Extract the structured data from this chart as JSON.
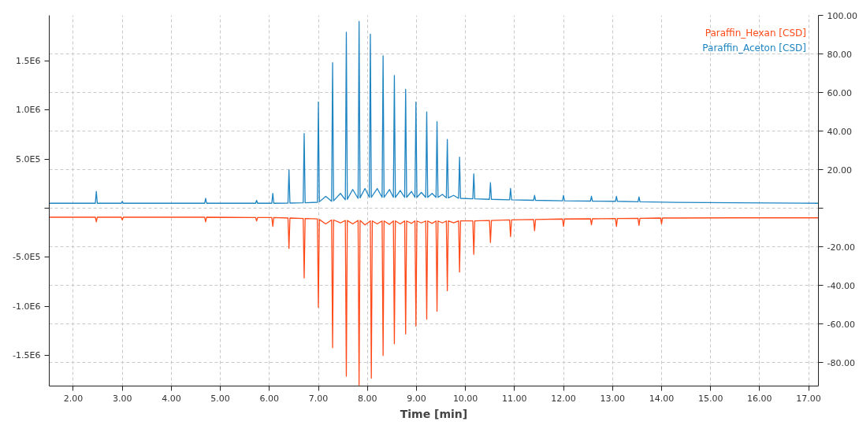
{
  "chart_data": {
    "type": "line",
    "xlabel": "Time [min]",
    "xlim": [
      1.51,
      17.2
    ],
    "xticks": [
      {
        "value": 2,
        "label": "2.00"
      },
      {
        "value": 3,
        "label": "3.00"
      },
      {
        "value": 4,
        "label": "4.00"
      },
      {
        "value": 5,
        "label": "5.00"
      },
      {
        "value": 6,
        "label": "6.00"
      },
      {
        "value": 7,
        "label": "7.00"
      },
      {
        "value": 8,
        "label": "8.00"
      },
      {
        "value": 9,
        "label": "9.00"
      },
      {
        "value": 10,
        "label": "10.00"
      },
      {
        "value": 11,
        "label": "11.00"
      },
      {
        "value": 12,
        "label": "12.00"
      },
      {
        "value": 13,
        "label": "13.00"
      },
      {
        "value": 14,
        "label": "14.00"
      },
      {
        "value": 15,
        "label": "15.00"
      },
      {
        "value": 16,
        "label": "16.00"
      },
      {
        "value": 17,
        "label": "17.00"
      }
    ],
    "ylim": [
      -1810000,
      1962000
    ],
    "yticks": [
      {
        "value": 1500000,
        "label": "1.5E6"
      },
      {
        "value": 1000000,
        "label": "1.0E6"
      },
      {
        "value": 500000,
        "label": "5.0E5"
      },
      {
        "value": 0,
        "label": null
      },
      {
        "value": -500000,
        "label": "-5.0E5"
      },
      {
        "value": -1000000,
        "label": "-1.0E6"
      },
      {
        "value": -1500000,
        "label": "-1.5E6"
      }
    ],
    "y2lim": [
      -92.2,
      100
    ],
    "y2ticks": [
      {
        "value": 100,
        "label": "100.00"
      },
      {
        "value": 80,
        "label": "80.00"
      },
      {
        "value": 60,
        "label": "60.00"
      },
      {
        "value": 40,
        "label": "40.00"
      },
      {
        "value": 20,
        "label": "20.00"
      },
      {
        "value": 0,
        "label": null
      },
      {
        "value": -20,
        "label": "-20.00"
      },
      {
        "value": -40,
        "label": "-40.00"
      },
      {
        "value": -60,
        "label": "-60.00"
      },
      {
        "value": -80,
        "label": "-80.00"
      }
    ],
    "grid": true,
    "legend": "top right",
    "line_style": "solid",
    "marker": "none",
    "series": [
      {
        "name": "Paraffin_Hexan [CSD]",
        "color": "#ff4a1a",
        "x": [
          1.51,
          2.45,
          2.47,
          2.49,
          2.98,
          3.0,
          3.02,
          4.68,
          4.7,
          4.72,
          5.72,
          5.74,
          5.76,
          6.05,
          6.07,
          6.09,
          6.38,
          6.4,
          6.42,
          6.69,
          6.71,
          6.73,
          6.98,
          7.0,
          7.02,
          7.15,
          7.27,
          7.29,
          7.31,
          7.45,
          7.55,
          7.57,
          7.59,
          7.7,
          7.81,
          7.83,
          7.85,
          7.95,
          8.06,
          8.08,
          8.1,
          8.2,
          8.3,
          8.32,
          8.34,
          8.45,
          8.53,
          8.55,
          8.57,
          8.67,
          8.76,
          8.78,
          8.8,
          8.9,
          8.97,
          8.99,
          9.01,
          9.1,
          9.19,
          9.21,
          9.23,
          9.32,
          9.4,
          9.42,
          9.44,
          9.53,
          9.61,
          9.63,
          9.65,
          9.76,
          9.86,
          9.88,
          9.9,
          10.15,
          10.17,
          10.19,
          10.49,
          10.51,
          10.53,
          10.9,
          10.92,
          10.94,
          11.39,
          11.41,
          11.43,
          11.98,
          12.0,
          12.02,
          12.55,
          12.57,
          12.59,
          13.06,
          13.08,
          13.1,
          13.52,
          13.54,
          13.56,
          13.98,
          14.0,
          14.02,
          14.3,
          15.5,
          17.2
        ],
        "values": [
          -92000,
          -92000,
          -140000,
          -92000,
          -92000,
          -120000,
          -92000,
          -92000,
          -140000,
          -92000,
          -95000,
          -130000,
          -95000,
          -95000,
          -185000,
          -95000,
          -100000,
          -410000,
          -100000,
          -105000,
          -710000,
          -105000,
          -110000,
          -1010000,
          -115000,
          -160000,
          -120000,
          -1420000,
          -120000,
          -150000,
          -125000,
          -1710000,
          -125000,
          -160000,
          -125000,
          -1800000,
          -125000,
          -170000,
          -130000,
          -1730000,
          -130000,
          -160000,
          -130000,
          -1500000,
          -130000,
          -165000,
          -130000,
          -1380000,
          -130000,
          -160000,
          -130000,
          -1280000,
          -130000,
          -155000,
          -130000,
          -1200000,
          -130000,
          -150000,
          -130000,
          -1130000,
          -130000,
          -155000,
          -130000,
          -1050000,
          -130000,
          -150000,
          -130000,
          -840000,
          -130000,
          -150000,
          -130000,
          -650000,
          -130000,
          -130000,
          -470000,
          -130000,
          -125000,
          -350000,
          -125000,
          -120000,
          -290000,
          -120000,
          -115000,
          -230000,
          -115000,
          -110000,
          -185000,
          -110000,
          -108000,
          -170000,
          -108000,
          -105000,
          -185000,
          -105000,
          -103000,
          -175000,
          -103000,
          -100000,
          -160000,
          -100000,
          -100000,
          -98000,
          -98000
        ]
      },
      {
        "name": "Paraffin_Aceton [CSD]",
        "color": "#1f85c2",
        "x": [
          1.51,
          2.45,
          2.47,
          2.49,
          2.98,
          3.0,
          3.02,
          4.68,
          4.7,
          4.72,
          5.72,
          5.74,
          5.76,
          6.05,
          6.07,
          6.09,
          6.38,
          6.4,
          6.42,
          6.69,
          6.71,
          6.73,
          6.98,
          7.0,
          7.02,
          7.15,
          7.27,
          7.29,
          7.31,
          7.45,
          7.55,
          7.57,
          7.59,
          7.7,
          7.81,
          7.83,
          7.85,
          7.95,
          8.04,
          8.06,
          8.08,
          8.2,
          8.3,
          8.32,
          8.34,
          8.45,
          8.53,
          8.55,
          8.57,
          8.67,
          8.76,
          8.78,
          8.8,
          8.9,
          8.97,
          8.99,
          9.01,
          9.1,
          9.19,
          9.21,
          9.23,
          9.32,
          9.4,
          9.42,
          9.44,
          9.53,
          9.61,
          9.63,
          9.65,
          9.76,
          9.86,
          9.88,
          9.9,
          10.15,
          10.17,
          10.19,
          10.49,
          10.51,
          10.53,
          10.9,
          10.92,
          10.94,
          11.39,
          11.41,
          11.43,
          11.98,
          12.0,
          12.02,
          12.55,
          12.57,
          12.59,
          13.06,
          13.08,
          13.1,
          13.52,
          13.54,
          13.56,
          14.3,
          15.5,
          17.2
        ],
        "values": [
          50000,
          50000,
          170000,
          50000,
          50000,
          70000,
          50000,
          50000,
          100000,
          50000,
          50000,
          80000,
          50000,
          50000,
          150000,
          50000,
          52000,
          390000,
          52000,
          55000,
          760000,
          55000,
          60000,
          1080000,
          65000,
          120000,
          70000,
          1480000,
          75000,
          150000,
          85000,
          1790000,
          90000,
          190000,
          100000,
          1900000,
          105000,
          200000,
          110000,
          1770000,
          110000,
          200000,
          110000,
          1550000,
          110000,
          190000,
          110000,
          1350000,
          110000,
          180000,
          110000,
          1210000,
          110000,
          170000,
          110000,
          1080000,
          110000,
          160000,
          110000,
          980000,
          110000,
          150000,
          110000,
          880000,
          110000,
          140000,
          105000,
          700000,
          105000,
          130000,
          100000,
          520000,
          100000,
          95000,
          350000,
          95000,
          90000,
          260000,
          90000,
          85000,
          200000,
          85000,
          80000,
          130000,
          80000,
          75000,
          130000,
          75000,
          72000,
          120000,
          72000,
          70000,
          120000,
          70000,
          65000,
          115000,
          65000,
          59000,
          55000,
          50000
        ]
      }
    ]
  }
}
